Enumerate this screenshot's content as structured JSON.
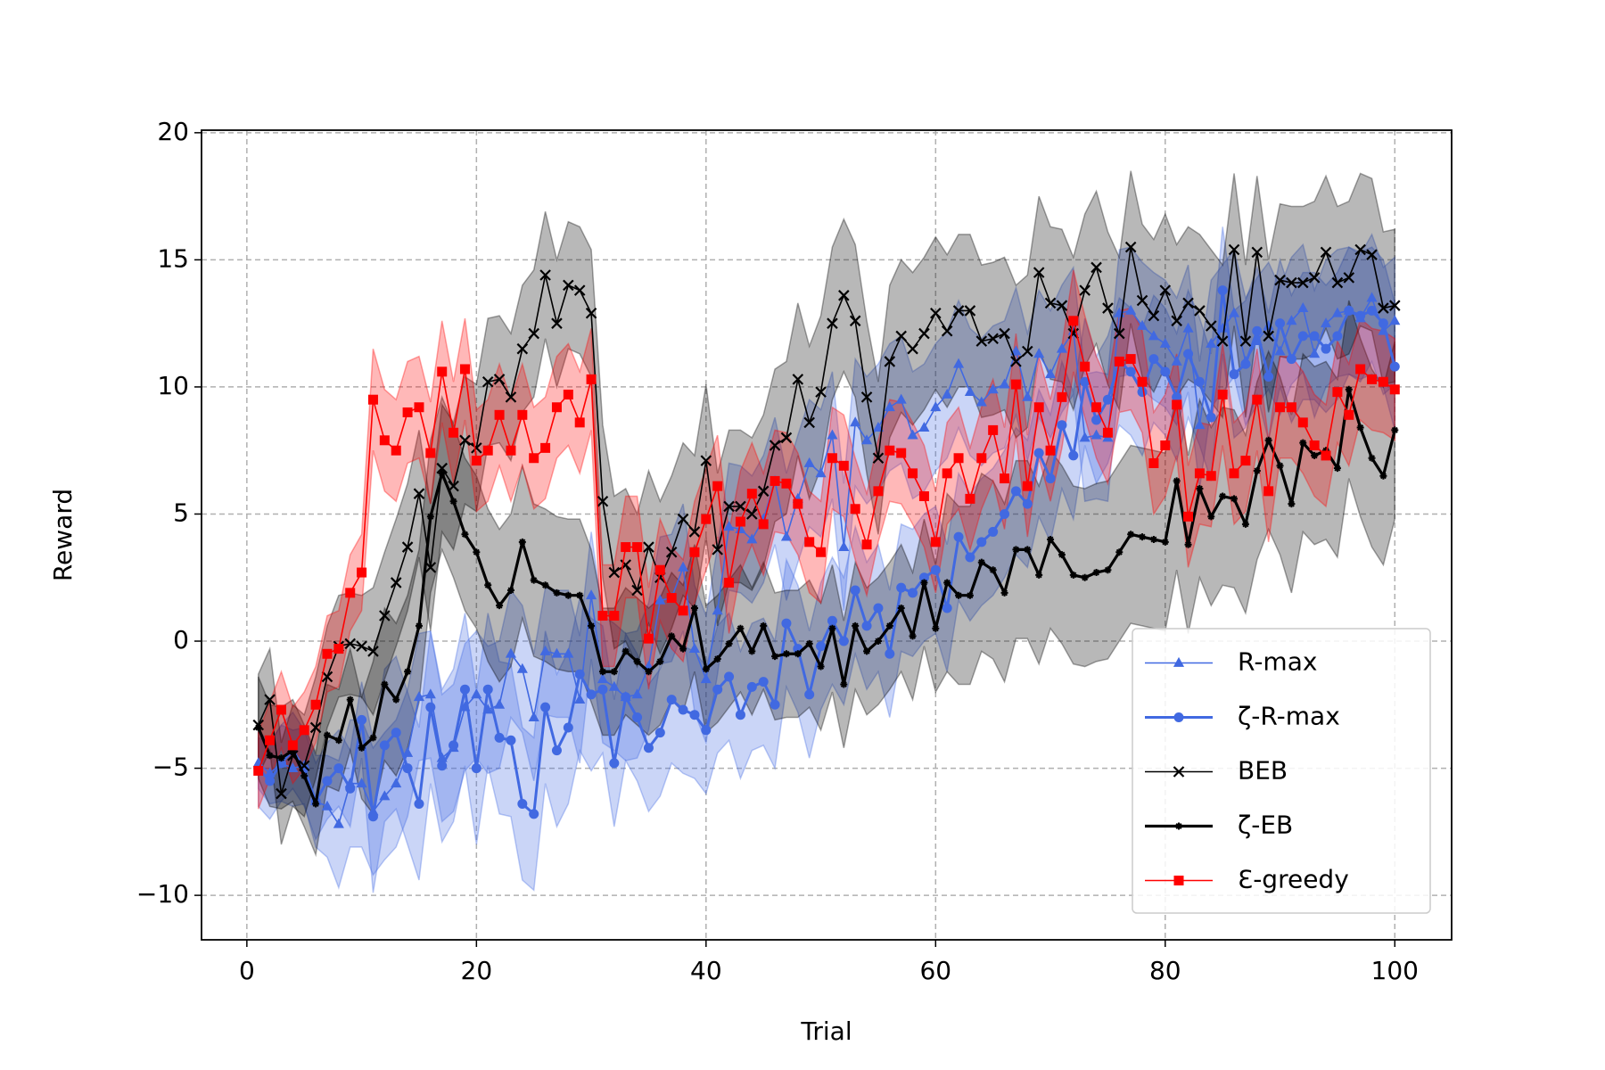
{
  "chart_data": {
    "type": "line",
    "x_label": "Trial",
    "y_label": "Reward",
    "x": [
      1,
      2,
      3,
      4,
      5,
      6,
      7,
      8,
      9,
      10,
      11,
      12,
      13,
      14,
      15,
      16,
      17,
      18,
      19,
      20,
      21,
      22,
      23,
      24,
      25,
      26,
      27,
      28,
      29,
      30,
      31,
      32,
      33,
      34,
      35,
      36,
      37,
      38,
      39,
      40,
      41,
      42,
      43,
      44,
      45,
      46,
      47,
      48,
      49,
      50,
      51,
      52,
      53,
      54,
      55,
      56,
      57,
      58,
      59,
      60,
      61,
      62,
      63,
      64,
      65,
      66,
      67,
      68,
      69,
      70,
      71,
      72,
      73,
      74,
      75,
      76,
      77,
      78,
      79,
      80,
      81,
      82,
      83,
      84,
      85,
      86,
      87,
      88,
      89,
      90,
      91,
      92,
      93,
      94,
      95,
      96,
      97,
      98,
      99,
      100
    ],
    "xlim": [
      -3.95,
      104.95
    ],
    "xticks": [
      0,
      20,
      40,
      60,
      80,
      100
    ],
    "ylim": [
      -11.75,
      20.1
    ],
    "yticks": [
      {
        "value": -10,
        "label": "−10"
      },
      {
        "value": -5,
        "label": "−5"
      },
      0,
      5,
      10,
      15,
      20
    ],
    "grid": true,
    "legend": "lower right",
    "series": [
      {
        "name": "R-max",
        "color": "#4169e1",
        "marker": "triangle",
        "values": [
          -4.8,
          -5.2,
          -4.8,
          -5.0,
          -4.9,
          -6.3,
          -6.5,
          -7.2,
          -5.6,
          -5.6,
          -6.7,
          -6.1,
          -5.6,
          -4.4,
          -2.2,
          -2.1,
          -4.6,
          -4.2,
          -2.6,
          -2.1,
          -2.7,
          -2.5,
          -0.5,
          -1.1,
          -3.0,
          -0.4,
          -0.5,
          -0.5,
          -2.3,
          1.8,
          -1.5,
          -1.8,
          -2.2,
          -2.1,
          -1.0,
          1.6,
          1.7,
          2.9,
          -0.3,
          -1.5,
          1.2,
          4.5,
          4.4,
          4.0,
          4.8,
          6.3,
          4.1,
          5.6,
          7.0,
          6.6,
          8.1,
          3.7,
          8.6,
          7.9,
          8.4,
          9.2,
          9.5,
          8.1,
          8.4,
          9.2,
          9.7,
          10.9,
          9.8,
          9.4,
          9.9,
          10.1,
          11.4,
          9.6,
          11.3,
          10.5,
          11.5,
          12.2,
          8.0,
          8.1,
          8.0,
          12.9,
          13.0,
          12.4,
          12.0,
          11.7,
          11.0,
          12.3,
          8.5,
          11.7,
          12.3,
          12.9,
          11.0,
          11.8,
          12.4,
          11.4,
          12.6,
          13.1,
          11.3,
          12.5,
          12.9,
          13.0,
          12.7,
          13.5,
          12.2,
          12.6
        ],
        "error": [
          1.0,
          1.2,
          1.5,
          1.5,
          1.5,
          1.8,
          2.0,
          2.5,
          2.5,
          2.5,
          2.5,
          2.5,
          2.5,
          2.5,
          2.5,
          2.5,
          2.5,
          2.5,
          2.5,
          2.5,
          2.5,
          2.5,
          2.5,
          2.5,
          2.5,
          2.5,
          2.5,
          2.5,
          2.5,
          2.5,
          2.5,
          2.5,
          2.5,
          2.5,
          2.5,
          2.5,
          2.5,
          2.5,
          2.5,
          2.5,
          2.5,
          2.5,
          2.5,
          2.5,
          2.5,
          2.5,
          2.5,
          2.5,
          2.5,
          2.5,
          2.5,
          2.5,
          2.5,
          2.5,
          2.5,
          2.5,
          2.5,
          2.5,
          2.5,
          2.5,
          2.5,
          2.5,
          2.5,
          2.5,
          2.5,
          2.5,
          2.5,
          2.5,
          2.5,
          2.5,
          2.5,
          2.5,
          2.5,
          2.5,
          2.5,
          2.5,
          2.5,
          2.5,
          2.5,
          2.5,
          2.5,
          2.5,
          2.5,
          2.5,
          2.5,
          2.5,
          2.5,
          2.5,
          2.5,
          2.5,
          2.5,
          2.5,
          2.5,
          2.5,
          2.5,
          2.5,
          2.5,
          2.5,
          2.5,
          2.5
        ]
      },
      {
        "name": "ζ-R-max",
        "color": "#4169e1",
        "marker": "circle",
        "values": [
          -5.0,
          -5.5,
          -4.8,
          -4.3,
          -5.0,
          -6.3,
          -5.5,
          -5.0,
          -5.8,
          -3.1,
          -6.9,
          -4.1,
          -3.6,
          -5.0,
          -6.4,
          -2.6,
          -4.9,
          -4.1,
          -1.9,
          -5.0,
          -1.9,
          -3.8,
          -3.9,
          -6.4,
          -6.8,
          -2.6,
          -4.3,
          -3.4,
          -1.3,
          -2.1,
          -1.9,
          -4.8,
          -2.2,
          -3.0,
          -4.2,
          -3.6,
          -2.3,
          -2.7,
          -2.9,
          -3.5,
          -1.9,
          -1.4,
          -2.9,
          -1.8,
          -1.6,
          -2.5,
          0.7,
          -0.3,
          -2.1,
          -0.2,
          0.8,
          0.0,
          2.0,
          0.6,
          1.3,
          -0.5,
          2.1,
          1.9,
          2.5,
          2.8,
          1.3,
          4.1,
          3.3,
          3.9,
          4.3,
          5.0,
          5.9,
          5.4,
          7.4,
          6.4,
          8.5,
          7.3,
          10.2,
          8.7,
          9.5,
          11.0,
          10.6,
          9.8,
          11.1,
          10.6,
          9.6,
          11.3,
          10.2,
          8.8,
          13.8,
          10.5,
          10.9,
          12.2,
          10.4,
          12.5,
          11.1,
          12.0,
          12.0,
          11.5,
          12.0,
          13.0,
          12.8,
          13.0,
          12.5,
          10.8
        ],
        "error": [
          1.5,
          1.5,
          1.5,
          1.5,
          1.5,
          1.5,
          1.5,
          1.5,
          1.5,
          1.5,
          3.0,
          3.0,
          3.0,
          3.0,
          3.0,
          3.0,
          3.0,
          3.0,
          3.0,
          3.0,
          3.0,
          3.0,
          3.0,
          3.0,
          3.0,
          3.0,
          3.0,
          3.0,
          3.0,
          3.0,
          2.5,
          2.5,
          2.5,
          2.5,
          2.5,
          2.5,
          2.5,
          2.5,
          2.5,
          2.5,
          2.5,
          2.5,
          2.5,
          2.5,
          2.5,
          2.5,
          2.5,
          2.5,
          2.5,
          2.5,
          2.5,
          2.5,
          2.5,
          2.5,
          2.5,
          2.5,
          2.5,
          2.5,
          2.5,
          2.5,
          2.5,
          2.5,
          2.5,
          2.5,
          2.5,
          2.5,
          2.5,
          2.5,
          2.5,
          2.5,
          2.5,
          2.5,
          2.5,
          2.5,
          2.5,
          2.5,
          2.5,
          2.5,
          2.5,
          2.5,
          2.5,
          2.5,
          2.5,
          2.5,
          2.5,
          2.5,
          2.5,
          2.5,
          2.5,
          2.5,
          2.5,
          2.5,
          2.5,
          2.5,
          2.5,
          2.5,
          2.5,
          2.5,
          2.5,
          2.5
        ]
      },
      {
        "name": "BEB",
        "color": "#000000",
        "marker": "x",
        "values": [
          -3.3,
          -2.3,
          -6.0,
          -4.5,
          -4.9,
          -3.4,
          -1.4,
          -0.2,
          -0.1,
          -0.2,
          -0.4,
          1.0,
          2.3,
          3.7,
          5.8,
          2.9,
          6.8,
          6.1,
          7.9,
          7.6,
          10.2,
          10.3,
          9.6,
          11.5,
          12.1,
          14.4,
          12.5,
          14.0,
          13.8,
          12.9,
          5.5,
          2.7,
          3.0,
          2.0,
          3.7,
          2.5,
          3.5,
          4.8,
          4.3,
          7.1,
          3.6,
          5.3,
          5.3,
          5.0,
          5.9,
          7.7,
          8.0,
          10.3,
          8.6,
          9.8,
          12.5,
          13.6,
          12.6,
          9.6,
          7.2,
          11.0,
          12.0,
          11.5,
          12.1,
          12.9,
          12.2,
          13.0,
          13.0,
          11.8,
          11.9,
          12.1,
          11.0,
          11.4,
          14.5,
          13.3,
          13.2,
          12.1,
          13.8,
          14.7,
          13.1,
          12.1,
          15.5,
          13.4,
          12.8,
          13.8,
          12.6,
          13.3,
          13.0,
          12.4,
          11.8,
          15.4,
          11.8,
          15.3,
          12.0,
          14.2,
          14.1,
          14.1,
          14.3,
          15.3,
          14.1,
          14.3,
          15.4,
          15.2,
          13.1,
          13.2
        ],
        "error": [
          2.0,
          2.0,
          2.0,
          2.0,
          2.0,
          2.0,
          2.0,
          2.0,
          2.0,
          2.0,
          2.5,
          2.5,
          2.5,
          2.5,
          2.5,
          2.5,
          2.5,
          2.5,
          2.5,
          2.5,
          2.5,
          2.5,
          2.5,
          2.5,
          2.5,
          2.5,
          2.5,
          2.5,
          2.5,
          2.5,
          3.0,
          3.0,
          3.0,
          3.0,
          3.0,
          3.0,
          3.0,
          3.0,
          3.0,
          3.0,
          3.0,
          3.0,
          3.0,
          3.0,
          3.0,
          3.0,
          3.0,
          3.0,
          3.0,
          3.0,
          3.0,
          3.0,
          3.0,
          3.0,
          3.0,
          3.0,
          3.0,
          3.0,
          3.0,
          3.0,
          3.0,
          3.0,
          3.0,
          3.0,
          3.0,
          3.0,
          3.0,
          3.0,
          3.0,
          3.0,
          3.0,
          3.0,
          3.0,
          3.0,
          3.0,
          3.0,
          3.0,
          3.0,
          3.0,
          3.0,
          3.0,
          3.0,
          3.0,
          3.0,
          3.0,
          3.0,
          3.0,
          3.0,
          3.0,
          3.0,
          3.0,
          3.0,
          3.0,
          3.0,
          3.0,
          3.0,
          3.0,
          3.0,
          3.0,
          3.0
        ]
      },
      {
        "name": "ζ-EB",
        "color": "#000000",
        "marker": "star",
        "values": [
          -3.4,
          -4.5,
          -4.6,
          -4.3,
          -5.3,
          -6.4,
          -3.7,
          -3.9,
          -2.3,
          -4.2,
          -3.8,
          -1.7,
          -2.3,
          -1.2,
          0.6,
          4.9,
          6.6,
          5.5,
          4.2,
          3.5,
          2.2,
          1.4,
          2.0,
          3.9,
          2.4,
          2.2,
          1.9,
          1.8,
          1.8,
          0.6,
          -1.2,
          -1.2,
          -0.4,
          -0.8,
          -1.2,
          -0.8,
          0.2,
          -0.3,
          1.3,
          -1.1,
          -0.7,
          -0.1,
          0.5,
          -0.4,
          0.6,
          -0.6,
          -0.5,
          -0.5,
          -0.1,
          -1.0,
          0.5,
          -1.7,
          0.6,
          -0.4,
          0.0,
          0.6,
          1.3,
          0.2,
          2.3,
          0.5,
          2.3,
          1.8,
          1.8,
          3.1,
          2.8,
          1.9,
          3.6,
          3.6,
          2.6,
          4.0,
          3.4,
          2.6,
          2.5,
          2.7,
          2.8,
          3.5,
          4.2,
          4.1,
          4.0,
          3.9,
          6.3,
          3.8,
          6.0,
          4.9,
          5.7,
          5.6,
          4.6,
          6.7,
          7.9,
          6.9,
          5.4,
          7.8,
          7.3,
          7.5,
          6.8,
          9.9,
          8.4,
          7.2,
          6.5,
          8.3
        ],
        "error": [
          2.0,
          2.0,
          2.0,
          2.0,
          2.0,
          2.0,
          2.0,
          2.0,
          2.0,
          2.0,
          3.0,
          3.0,
          3.0,
          3.0,
          3.0,
          3.0,
          3.0,
          3.0,
          3.0,
          3.0,
          3.0,
          3.0,
          3.0,
          3.0,
          3.0,
          3.0,
          3.0,
          3.0,
          3.0,
          3.0,
          2.5,
          2.5,
          2.5,
          2.5,
          2.5,
          2.5,
          2.5,
          2.5,
          2.5,
          2.5,
          2.5,
          2.5,
          2.5,
          2.5,
          2.5,
          2.5,
          2.5,
          2.5,
          2.5,
          2.5,
          2.5,
          2.5,
          2.5,
          2.5,
          2.5,
          2.5,
          2.5,
          2.5,
          2.5,
          2.5,
          3.5,
          3.5,
          3.5,
          3.5,
          3.5,
          3.5,
          3.5,
          3.5,
          3.5,
          3.5,
          3.5,
          3.5,
          3.5,
          3.5,
          3.5,
          3.5,
          3.5,
          3.5,
          3.5,
          3.5,
          3.5,
          3.5,
          3.5,
          3.5,
          3.5,
          3.5,
          3.5,
          3.5,
          3.5,
          3.5,
          3.5,
          3.5,
          3.5,
          3.5,
          3.5,
          3.5,
          3.5,
          3.5,
          3.5,
          3.5
        ]
      },
      {
        "name": "Ɛ-greedy",
        "color": "#ff0000",
        "marker": "square",
        "values": [
          -5.1,
          -3.9,
          -2.7,
          -4.1,
          -3.5,
          -2.5,
          -0.5,
          -0.3,
          1.9,
          2.7,
          9.5,
          7.9,
          7.5,
          9.0,
          9.2,
          7.4,
          10.6,
          8.2,
          10.7,
          7.1,
          7.5,
          8.9,
          7.5,
          8.9,
          7.2,
          7.6,
          9.2,
          9.7,
          8.6,
          10.3,
          1.0,
          1.0,
          3.7,
          3.7,
          0.1,
          2.8,
          1.7,
          1.2,
          3.5,
          4.8,
          6.1,
          2.3,
          4.7,
          5.8,
          4.6,
          6.3,
          6.2,
          5.4,
          3.9,
          3.5,
          7.2,
          6.9,
          5.2,
          3.8,
          5.9,
          7.5,
          7.4,
          6.6,
          5.7,
          3.9,
          6.6,
          7.2,
          5.6,
          7.2,
          8.3,
          6.4,
          10.1,
          6.1,
          9.2,
          7.5,
          9.6,
          12.6,
          10.8,
          9.2,
          8.2,
          11.0,
          11.1,
          10.2,
          7.0,
          7.7,
          9.3,
          4.9,
          6.6,
          6.5,
          9.7,
          6.6,
          7.1,
          9.5,
          5.9,
          9.2,
          9.2,
          8.6,
          7.7,
          7.3,
          9.8,
          8.9,
          10.7,
          10.3,
          10.2,
          9.9
        ],
        "error": [
          1.5,
          1.5,
          1.5,
          1.5,
          1.5,
          1.5,
          1.5,
          1.5,
          1.5,
          1.5,
          2.0,
          2.0,
          2.0,
          2.0,
          2.0,
          2.0,
          2.0,
          2.0,
          2.0,
          2.0,
          2.0,
          2.0,
          2.0,
          2.0,
          2.0,
          2.0,
          2.0,
          2.0,
          2.0,
          2.0,
          2.0,
          2.0,
          2.0,
          2.0,
          2.0,
          2.0,
          2.0,
          2.0,
          2.0,
          2.0,
          2.0,
          2.0,
          2.0,
          2.0,
          2.0,
          2.0,
          2.0,
          2.0,
          2.0,
          2.0,
          2.0,
          2.0,
          2.0,
          2.0,
          2.0,
          2.0,
          2.0,
          2.0,
          2.0,
          2.0,
          2.0,
          2.0,
          2.0,
          2.0,
          2.0,
          2.0,
          2.0,
          2.0,
          2.0,
          2.0,
          2.0,
          2.0,
          2.0,
          2.0,
          2.0,
          2.0,
          2.0,
          2.0,
          2.0,
          2.0,
          2.0,
          2.0,
          2.0,
          2.0,
          2.0,
          2.0,
          2.0,
          2.0,
          2.0,
          2.0,
          2.0,
          2.0,
          2.0,
          2.0,
          2.0,
          2.0,
          2.0,
          2.0,
          2.0,
          2.0
        ]
      }
    ]
  }
}
